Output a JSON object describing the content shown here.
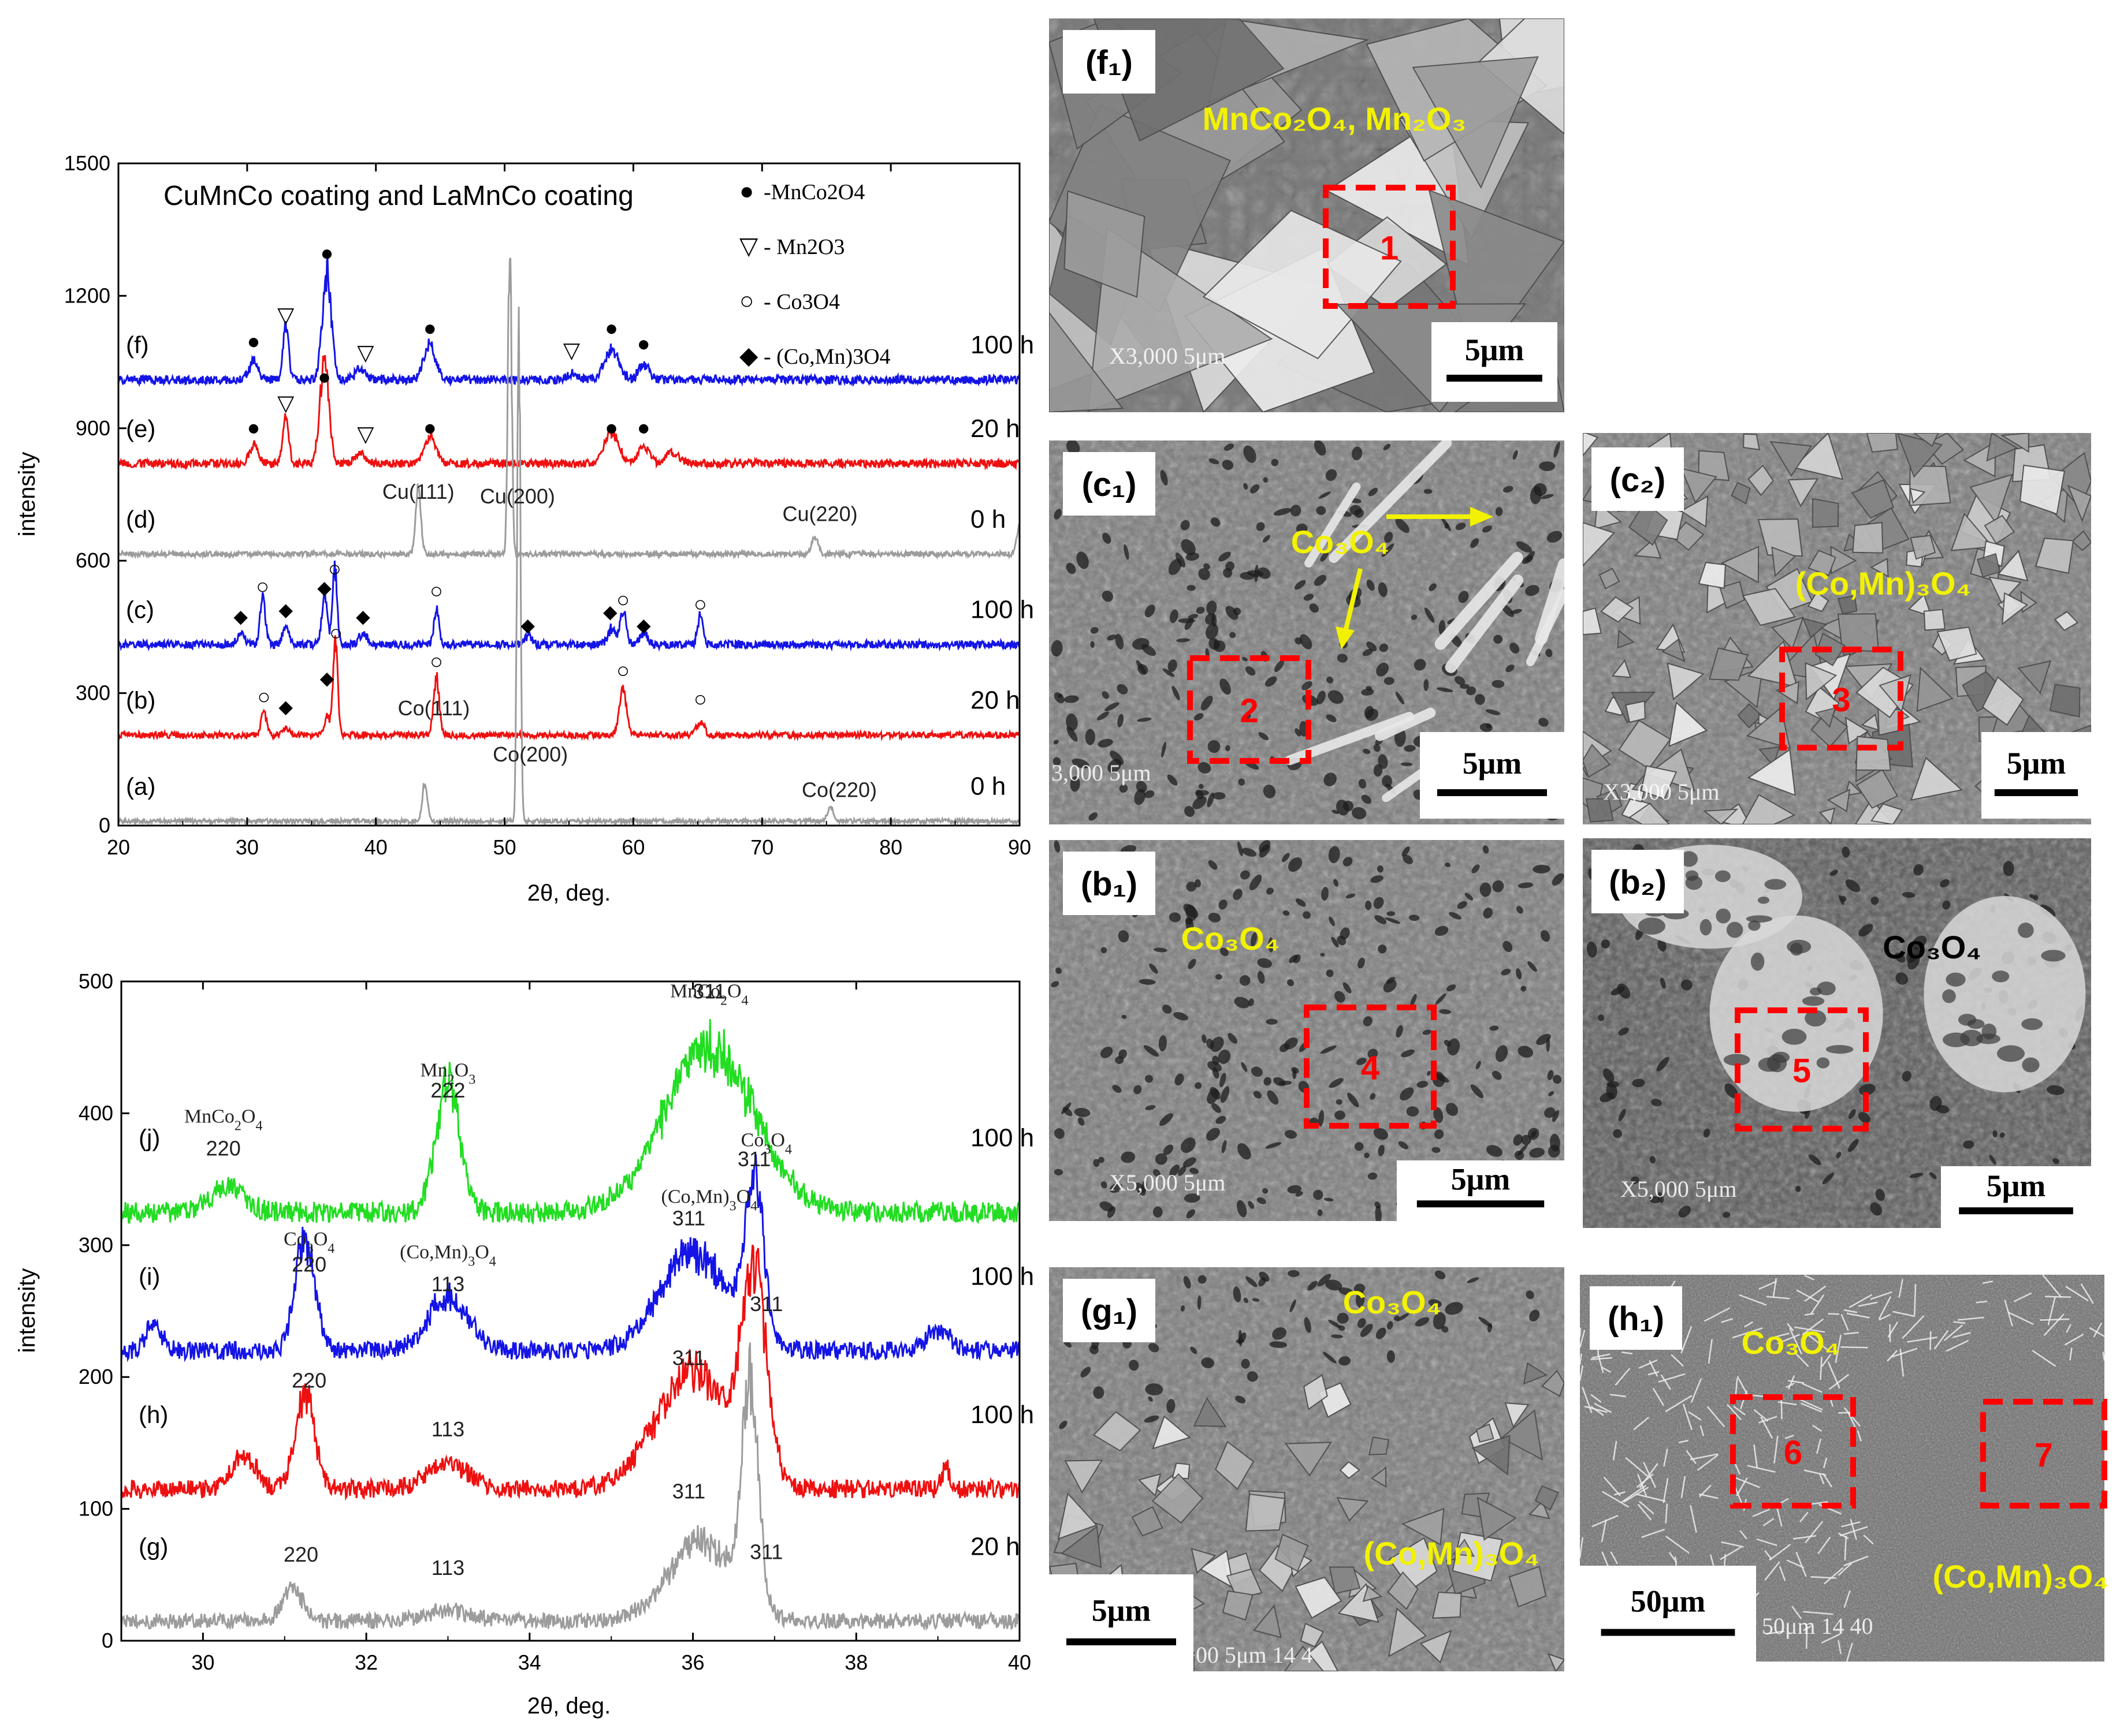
{
  "colors": {
    "green": "#22dd22",
    "blue": "#1414e6",
    "red": "#ee1010",
    "gray": "#9c9c9c",
    "yellow": "#f2f200",
    "dashed": "#ff0000",
    "black": "#000000"
  },
  "chart_data": [
    {
      "type": "line",
      "panel": "top-xrd",
      "title": "CuMnCo coating  and LaMnCo coating",
      "xlabel": "2θ, deg.",
      "ylabel": "intensity",
      "xlim": [
        20,
        90
      ],
      "ylim": [
        0,
        1500
      ],
      "xticks": [
        "20",
        "30",
        "40",
        "50",
        "60",
        "70",
        "80",
        "90"
      ],
      "yticks": [
        "0",
        "300",
        "600",
        "900",
        "1200",
        "1500"
      ],
      "legend": [
        {
          "symbol": "●",
          "text": "-MnCo2O4"
        },
        {
          "symbol": "▽",
          "text": "- Mn2O3"
        },
        {
          "symbol": "○",
          "text": "- Co3O4"
        },
        {
          "symbol": "◆",
          "text": "- (Co,Mn)3O4"
        }
      ],
      "series": [
        {
          "name": "(f)",
          "time": "100 h",
          "color": "blue",
          "baseline": 1010,
          "noise": 10,
          "peaks": [
            [
              30.5,
              40,
              0.35
            ],
            [
              33.0,
              130,
              0.22
            ],
            [
              36.2,
              240,
              0.35
            ],
            [
              38.8,
              25,
              0.4
            ],
            [
              44.2,
              80,
              0.45
            ],
            [
              55.3,
              15,
              0.4
            ],
            [
              58.3,
              70,
              0.55
            ],
            [
              60.8,
              35,
              0.4
            ]
          ]
        },
        {
          "name": "(e)",
          "time": "20 h",
          "color": "red",
          "baseline": 820,
          "noise": 9,
          "peaks": [
            [
              30.5,
              40,
              0.35
            ],
            [
              33.0,
              110,
              0.22
            ],
            [
              36.0,
              230,
              0.35
            ],
            [
              38.8,
              25,
              0.4
            ],
            [
              44.2,
              65,
              0.45
            ],
            [
              58.3,
              70,
              0.55
            ],
            [
              60.8,
              40,
              0.4
            ],
            [
              63.0,
              25,
              0.5
            ]
          ]
        },
        {
          "name": "(d)",
          "time": "0 h",
          "color": "gray",
          "baseline": 615,
          "noise": 6,
          "peaks": [
            [
              43.3,
              140,
              0.2
            ],
            [
              50.4,
              745,
              0.14
            ],
            [
              74.1,
              40,
              0.25
            ],
            [
              90,
              60,
              0.2
            ]
          ]
        },
        {
          "name": "(c)",
          "time": "100 h",
          "color": "blue",
          "baseline": 410,
          "noise": 9,
          "peaks": [
            [
              29.5,
              25,
              0.3
            ],
            [
              31.2,
              110,
              0.2
            ],
            [
              33.0,
              40,
              0.25
            ],
            [
              36.0,
              120,
              0.2
            ],
            [
              36.8,
              170,
              0.18
            ],
            [
              39.0,
              25,
              0.3
            ],
            [
              44.7,
              80,
              0.2
            ],
            [
              51.8,
              20,
              0.3
            ],
            [
              58.3,
              35,
              0.3
            ],
            [
              59.2,
              75,
              0.25
            ],
            [
              60.8,
              25,
              0.3
            ],
            [
              65.2,
              70,
              0.2
            ]
          ]
        },
        {
          "name": "(b)",
          "time": "20 h",
          "color": "red",
          "baseline": 205,
          "noise": 7,
          "peaks": [
            [
              31.3,
              55,
              0.2
            ],
            [
              33.0,
              15,
              0.3
            ],
            [
              36.2,
              40,
              0.2
            ],
            [
              36.85,
              220,
              0.18
            ],
            [
              44.7,
              125,
              0.22
            ],
            [
              59.2,
              100,
              0.28
            ],
            [
              65.2,
              30,
              0.3
            ]
          ]
        },
        {
          "name": "(a)",
          "time": "0 h",
          "color": "gray",
          "baseline": 10,
          "noise": 5,
          "peaks": [
            [
              43.8,
              80,
              0.2
            ],
            [
              51.1,
              1140,
              0.13
            ],
            [
              75.3,
              30,
              0.25
            ]
          ]
        }
      ],
      "annotations": [
        {
          "text": "Cu(111)",
          "x": 43.3,
          "y": 740
        },
        {
          "text": "Cu(200)",
          "x": 51.0,
          "y": 730
        },
        {
          "text": "Cu(220)",
          "x": 74.5,
          "y": 690
        },
        {
          "text": "Co(111)",
          "x": 44.5,
          "y": 250
        },
        {
          "text": "Co(200)",
          "x": 52.0,
          "y": 145
        },
        {
          "text": "Co(220)",
          "x": 76.0,
          "y": 65
        }
      ],
      "markers": [
        {
          "sym": "●",
          "x": 30.5,
          "y": 1080
        },
        {
          "sym": "▽",
          "x": 33.0,
          "y": 1140
        },
        {
          "sym": "●",
          "x": 36.2,
          "y": 1280
        },
        {
          "sym": "▽",
          "x": 39.2,
          "y": 1055
        },
        {
          "sym": "●",
          "x": 44.2,
          "y": 1110
        },
        {
          "sym": "▽",
          "x": 55.2,
          "y": 1060
        },
        {
          "sym": "●",
          "x": 58.3,
          "y": 1110
        },
        {
          "sym": "●",
          "x": 60.8,
          "y": 1075
        },
        {
          "sym": "●",
          "x": 30.5,
          "y": 885
        },
        {
          "sym": "▽",
          "x": 33.0,
          "y": 940
        },
        {
          "sym": "●",
          "x": 36.0,
          "y": 1000
        },
        {
          "sym": "▽",
          "x": 39.2,
          "y": 870
        },
        {
          "sym": "●",
          "x": 44.2,
          "y": 885
        },
        {
          "sym": "●",
          "x": 58.3,
          "y": 885
        },
        {
          "sym": "●",
          "x": 60.8,
          "y": 885
        },
        {
          "sym": "◆",
          "x": 29.5,
          "y": 460
        },
        {
          "sym": "○",
          "x": 31.2,
          "y": 525
        },
        {
          "sym": "◆",
          "x": 33.0,
          "y": 475
        },
        {
          "sym": "◆",
          "x": 36.0,
          "y": 525
        },
        {
          "sym": "○",
          "x": 36.8,
          "y": 565
        },
        {
          "sym": "◆",
          "x": 39.0,
          "y": 460
        },
        {
          "sym": "○",
          "x": 44.7,
          "y": 515
        },
        {
          "sym": "◆",
          "x": 51.8,
          "y": 440
        },
        {
          "sym": "◆",
          "x": 58.2,
          "y": 470
        },
        {
          "sym": "○",
          "x": 59.2,
          "y": 495
        },
        {
          "sym": "◆",
          "x": 60.8,
          "y": 440
        },
        {
          "sym": "○",
          "x": 65.2,
          "y": 485
        },
        {
          "sym": "○",
          "x": 31.3,
          "y": 275
        },
        {
          "sym": "◆",
          "x": 33.0,
          "y": 255
        },
        {
          "sym": "◆",
          "x": 36.2,
          "y": 320
        },
        {
          "sym": "○",
          "x": 36.9,
          "y": 420
        },
        {
          "sym": "○",
          "x": 44.7,
          "y": 355
        },
        {
          "sym": "○",
          "x": 59.2,
          "y": 335
        },
        {
          "sym": "○",
          "x": 65.2,
          "y": 270
        }
      ]
    },
    {
      "type": "line",
      "panel": "bottom-xrd",
      "xlabel": "2θ, deg.",
      "ylabel": "intensity",
      "xlim": [
        29,
        40
      ],
      "ylim": [
        0,
        500
      ],
      "xticks": [
        "30",
        "32",
        "34",
        "36",
        "38",
        "40"
      ],
      "yticks": [
        "0",
        "100",
        "200",
        "300",
        "400",
        "500"
      ],
      "series": [
        {
          "name": "(j)",
          "time": "100 h",
          "color": "green",
          "baseline": 325,
          "noise": 8,
          "peaks": [
            [
              30.3,
              20,
              0.2
            ],
            [
              33.0,
              95,
              0.15
            ],
            [
              36.2,
              125,
              0.55
            ]
          ]
        },
        {
          "name": "(i)",
          "time": "100 h",
          "color": "blue",
          "baseline": 220,
          "noise": 7,
          "peaks": [
            [
              29.4,
              20,
              0.1
            ],
            [
              31.25,
              85,
              0.12
            ],
            [
              33.0,
              40,
              0.25
            ],
            [
              36.0,
              75,
              0.4
            ],
            [
              36.75,
              120,
              0.12
            ],
            [
              39.0,
              15,
              0.15
            ]
          ]
        },
        {
          "name": "(h)",
          "time": "100 h",
          "color": "red",
          "baseline": 115,
          "noise": 7,
          "peaks": [
            [
              30.5,
              25,
              0.15
            ],
            [
              31.25,
              70,
              0.12
            ],
            [
              33.0,
              20,
              0.25
            ],
            [
              36.0,
              90,
              0.45
            ],
            [
              36.75,
              150,
              0.15
            ],
            [
              39.1,
              15,
              0.05
            ]
          ]
        },
        {
          "name": "(g)",
          "time": "20 h",
          "color": "gray",
          "baseline": 15,
          "noise": 6,
          "peaks": [
            [
              31.1,
              25,
              0.12
            ],
            [
              33.0,
              8,
              0.25
            ],
            [
              36.1,
              60,
              0.4
            ],
            [
              36.7,
              165,
              0.1
            ]
          ]
        }
      ],
      "annotations": [
        {
          "text": "220",
          "x": 30.25,
          "y": 368
        },
        {
          "text": "222",
          "x": 33.0,
          "y": 412
        },
        {
          "text": "311",
          "x": 36.2,
          "y": 487
        },
        {
          "text": "311",
          "x": 36.75,
          "y": 360
        },
        {
          "text": "220",
          "x": 31.3,
          "y": 280
        },
        {
          "text": "113",
          "x": 33.0,
          "y": 265
        },
        {
          "text": "311",
          "x": 35.95,
          "y": 315
        },
        {
          "text": "220",
          "x": 31.3,
          "y": 192
        },
        {
          "text": "113",
          "x": 33.0,
          "y": 155
        },
        {
          "text": "311",
          "x": 35.95,
          "y": 209
        },
        {
          "text": "311",
          "x": 36.9,
          "y": 250
        },
        {
          "text": "220",
          "x": 31.2,
          "y": 60
        },
        {
          "text": "113",
          "x": 33.0,
          "y": 50
        },
        {
          "text": "311",
          "x": 35.95,
          "y": 108
        },
        {
          "text": "311",
          "x": 36.9,
          "y": 62
        }
      ],
      "formula_labels": [
        {
          "base": "MnCo",
          "sub1": "2",
          "mid": "O",
          "sub2": "4",
          "x": 30.25,
          "y": 393
        },
        {
          "base": "Mn",
          "sub1": "2",
          "mid": "O",
          "sub2": "3",
          "x": 33.0,
          "y": 428
        },
        {
          "base": "MnCo",
          "sub1": "2",
          "mid": "O",
          "sub2": "4",
          "x": 36.2,
          "y": 488
        },
        {
          "base": "Co",
          "sub1": "3",
          "mid": "O",
          "sub2": "4",
          "x": 36.9,
          "y": 375
        },
        {
          "base": "Co",
          "sub1": "3",
          "mid": "O",
          "sub2": "4",
          "x": 31.3,
          "y": 300
        },
        {
          "base": "(Co,Mn)",
          "sub1": "3",
          "mid": "O",
          "sub2": "4",
          "x": 33.0,
          "y": 290
        },
        {
          "base": "(Co,Mn)",
          "sub1": "3",
          "mid": "O",
          "sub2": "4",
          "x": 36.2,
          "y": 332
        }
      ]
    }
  ],
  "images": [
    {
      "id": "f1",
      "label": "(f₁)",
      "tags": [
        {
          "text": "MnCo₂O₄, Mn₂O₃"
        }
      ],
      "boxes": [
        "1"
      ],
      "scale": "5μm",
      "caption": "X3,000   5μm",
      "style": "facets-large"
    },
    {
      "id": "c1",
      "label": "(c₁)",
      "tags": [
        {
          "text": "Co₃O₄"
        }
      ],
      "boxes": [
        "2"
      ],
      "scale": "5μm",
      "caption": "3,000   5μm",
      "style": "porous-needles"
    },
    {
      "id": "c2",
      "label": "(c₂)",
      "tags": [
        {
          "text": "(Co,Mn)₃O₄"
        }
      ],
      "boxes": [
        "3"
      ],
      "scale": "5μm",
      "caption": "X3,000   5μm",
      "style": "facets-small"
    },
    {
      "id": "b1",
      "label": "(b₁)",
      "tags": [
        {
          "text": "Co₃O₄"
        }
      ],
      "boxes": [
        "4"
      ],
      "scale": "5μm",
      "caption": "X5,000   5μm",
      "style": "porous"
    },
    {
      "id": "b2",
      "label": "(b₂)",
      "tags": [
        {
          "text": "Co₃O₄"
        }
      ],
      "boxes": [
        "5"
      ],
      "scale": "5μm",
      "caption": "X5,000   5μm",
      "style": "blobs"
    },
    {
      "id": "g1",
      "label": "(g₁)",
      "tags": [
        {
          "text": "Co₃O₄"
        },
        {
          "text": "(Co,Mn)₃O₄"
        }
      ],
      "boxes": [],
      "scale": "5μm",
      "caption": "00   5μm   14 4",
      "style": "mixed"
    },
    {
      "id": "h1",
      "label": "(h₁)",
      "tags": [
        {
          "text": "Co₃O₄"
        },
        {
          "text": "(Co,Mn)₃O₄"
        }
      ],
      "boxes": [
        "6",
        "7"
      ],
      "scale": "50μm",
      "caption": "50μm   14 40",
      "style": "needles-fine"
    }
  ]
}
